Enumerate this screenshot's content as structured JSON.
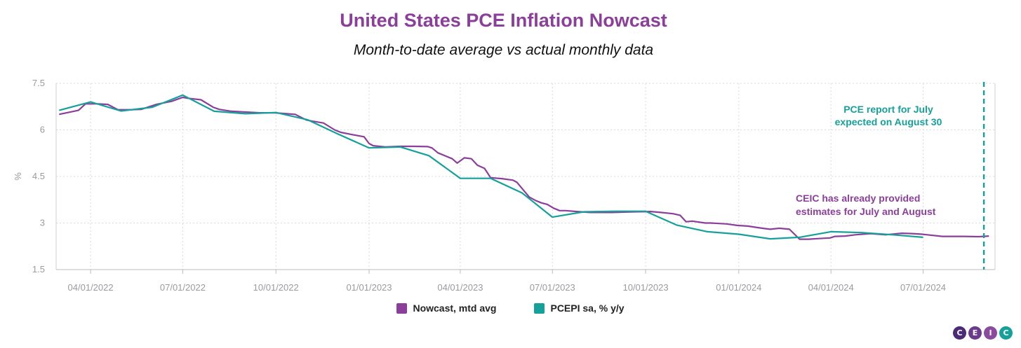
{
  "header": {
    "title": "United States PCE Inflation Nowcast",
    "subtitle": "Month-to-date average vs actual monthly data"
  },
  "colors": {
    "title": "#8b3f9a",
    "nowcast": "#8b3f9a",
    "pcepi": "#15a19a",
    "grid": "#d9d9d9",
    "logo": [
      "#4b2a77",
      "#6a3a8c",
      "#8a4b9f",
      "#15a19a"
    ]
  },
  "logo": {
    "letters": [
      "C",
      "E",
      "I",
      "C"
    ]
  },
  "chart_data": {
    "type": "line",
    "title": "United States PCE Inflation Nowcast",
    "subtitle": "Month-to-date average vs actual monthly data",
    "ylabel": "%",
    "ylim": [
      1.5,
      7.5
    ],
    "yticks": [
      1.5,
      3,
      4.5,
      6,
      7.5
    ],
    "ytick_labels": [
      "1.5",
      "3",
      "4.5",
      "6",
      "7.5"
    ],
    "xlim": [
      "2022-02-26",
      "2024-09-10"
    ],
    "xticks": [
      "2022-04-01",
      "2022-07-01",
      "2022-10-01",
      "2023-01-01",
      "2023-04-01",
      "2023-07-01",
      "2023-10-01",
      "2024-01-01",
      "2024-04-01",
      "2024-07-01"
    ],
    "xtick_labels": [
      "04/01/2022",
      "07/01/2022",
      "10/01/2022",
      "01/01/2023",
      "04/01/2023",
      "07/01/2023",
      "10/01/2023",
      "01/01/2024",
      "04/01/2024",
      "07/01/2024"
    ],
    "grid": true,
    "legend_position": "bottom-center",
    "series": [
      {
        "name": "Nowcast, mtd avg",
        "color": "#8b3f9a",
        "x": [
          "2022-03-01",
          "2022-03-20",
          "2022-03-27",
          "2022-04-08",
          "2022-04-18",
          "2022-04-28",
          "2022-05-04",
          "2022-05-11",
          "2022-05-21",
          "2022-06-05",
          "2022-06-20",
          "2022-07-01",
          "2022-07-06",
          "2022-07-19",
          "2022-07-31",
          "2022-08-06",
          "2022-08-18",
          "2022-08-30",
          "2022-09-15",
          "2022-09-30",
          "2022-10-20",
          "2022-10-31",
          "2022-11-06",
          "2022-11-17",
          "2022-11-28",
          "2022-12-04",
          "2022-12-15",
          "2022-12-27",
          "2023-01-01",
          "2023-01-05",
          "2023-01-17",
          "2023-02-01",
          "2023-02-14",
          "2023-02-28",
          "2023-03-04",
          "2023-03-10",
          "2023-03-24",
          "2023-03-29",
          "2023-04-05",
          "2023-04-12",
          "2023-04-18",
          "2023-04-25",
          "2023-05-01",
          "2023-05-12",
          "2023-05-23",
          "2023-05-27",
          "2023-06-08",
          "2023-06-14",
          "2023-06-20",
          "2023-06-26",
          "2023-07-02",
          "2023-07-08",
          "2023-07-14",
          "2023-07-25",
          "2023-08-07",
          "2023-08-29",
          "2023-09-20",
          "2023-10-06",
          "2023-10-16",
          "2023-10-28",
          "2023-11-04",
          "2023-11-10",
          "2023-11-16",
          "2023-11-29",
          "2023-12-04",
          "2023-12-20",
          "2023-12-31",
          "2024-01-10",
          "2024-01-20",
          "2024-01-27",
          "2024-02-01",
          "2024-02-10",
          "2024-02-20",
          "2024-03-01",
          "2024-03-10",
          "2024-03-20",
          "2024-03-31",
          "2024-04-05",
          "2024-04-15",
          "2024-04-25",
          "2024-05-10",
          "2024-05-25",
          "2024-06-10",
          "2024-06-20",
          "2024-06-30",
          "2024-07-05",
          "2024-07-20",
          "2024-08-10",
          "2024-08-25",
          "2024-09-04"
        ],
        "y": [
          6.5,
          6.63,
          6.84,
          6.84,
          6.82,
          6.65,
          6.65,
          6.65,
          6.66,
          6.82,
          6.92,
          7.05,
          7.02,
          6.97,
          6.73,
          6.66,
          6.6,
          6.58,
          6.55,
          6.55,
          6.5,
          6.32,
          6.28,
          6.22,
          6.0,
          5.92,
          5.85,
          5.78,
          5.56,
          5.49,
          5.45,
          5.47,
          5.47,
          5.46,
          5.42,
          5.26,
          5.07,
          4.93,
          5.1,
          5.07,
          4.86,
          4.76,
          4.46,
          4.43,
          4.38,
          4.31,
          3.84,
          3.73,
          3.65,
          3.6,
          3.48,
          3.4,
          3.4,
          3.37,
          3.34,
          3.34,
          3.36,
          3.37,
          3.34,
          3.3,
          3.25,
          3.04,
          3.06,
          3.0,
          3.0,
          2.97,
          2.92,
          2.9,
          2.85,
          2.82,
          2.8,
          2.83,
          2.8,
          2.48,
          2.48,
          2.5,
          2.52,
          2.57,
          2.58,
          2.62,
          2.66,
          2.62,
          2.67,
          2.66,
          2.64,
          2.62,
          2.57,
          2.57,
          2.56,
          2.58
        ]
      },
      {
        "name": "PCEPI sa, % y/y",
        "color": "#15a19a",
        "x": [
          "2022-03-01",
          "2022-04-01",
          "2022-05-01",
          "2022-06-01",
          "2022-07-01",
          "2022-08-01",
          "2022-09-01",
          "2022-10-01",
          "2022-11-01",
          "2022-12-01",
          "2023-01-01",
          "2023-02-01",
          "2023-03-01",
          "2023-04-01",
          "2023-05-01",
          "2023-06-01",
          "2023-07-01",
          "2023-08-01",
          "2023-09-01",
          "2023-10-01",
          "2023-11-01",
          "2023-12-01",
          "2024-01-01",
          "2024-02-01",
          "2024-03-01",
          "2024-04-01",
          "2024-05-01",
          "2024-06-01",
          "2024-07-01"
        ],
        "y": [
          6.63,
          6.9,
          6.61,
          6.73,
          7.12,
          6.6,
          6.52,
          6.56,
          6.33,
          5.87,
          5.42,
          5.45,
          5.17,
          4.44,
          4.44,
          3.97,
          3.19,
          3.36,
          3.38,
          3.38,
          2.93,
          2.72,
          2.64,
          2.49,
          2.54,
          2.72,
          2.69,
          2.62,
          2.54
        ]
      }
    ],
    "annotations": [
      {
        "lines": [
          "PCE report for July",
          "expected on August 30"
        ],
        "color": "#15a19a",
        "marker": "dashed-vertical-line",
        "x": "2024-08-30"
      },
      {
        "lines": [
          "CEIC has already provided",
          "estimates for July and August"
        ],
        "color": "#8b3f9a"
      }
    ]
  }
}
